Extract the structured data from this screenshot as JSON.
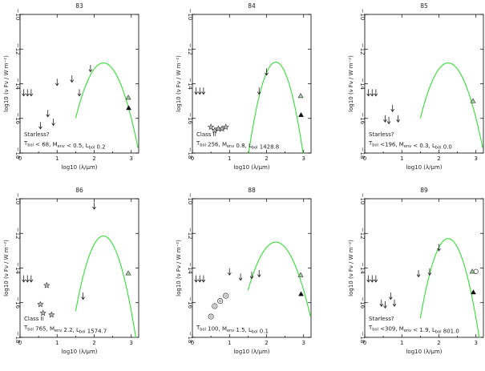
{
  "chart_data": [
    {
      "type": "scatter",
      "title": "83",
      "xlabel": "log10 (λ/μm)",
      "ylabel": "log10 (ν Fν / W m⁻²)",
      "xlim": [
        0,
        3.2
      ],
      "ylim": [
        -18,
        -10
      ],
      "xticks": [
        0,
        1,
        2,
        3
      ],
      "yticks": [
        -10,
        -12,
        -14,
        -16,
        -18
      ],
      "upper_limits": [
        [
          0.1,
          -14.5
        ],
        [
          0.2,
          -14.5
        ],
        [
          0.3,
          -14.5
        ],
        [
          0.55,
          -16.4
        ],
        [
          0.75,
          -15.7
        ],
        [
          0.9,
          -16.2
        ],
        [
          1.0,
          -13.9
        ],
        [
          1.4,
          -13.7
        ],
        [
          1.6,
          -14.5
        ],
        [
          1.9,
          -13.1
        ]
      ],
      "detections": [],
      "submm": [
        {
          "x": 2.92,
          "y": -14.8,
          "marker": "open-triangle"
        },
        {
          "x": 2.93,
          "y": -15.4,
          "marker": "filled-triangle"
        }
      ],
      "sed_model": {
        "peak_x": 2.25,
        "peak_y": -12.8,
        "width": 0.42
      },
      "annotation": {
        "class": "Starless?",
        "params": "T_bol < 68, M_env < 0.5, L_bol 0.2"
      }
    },
    {
      "type": "scatter",
      "title": "84",
      "xlabel": "log10 (λ/μm)",
      "ylabel": "log10 (ν Fν / W m⁻²)",
      "xlim": [
        0,
        3.2
      ],
      "ylim": [
        -18,
        -10
      ],
      "xticks": [
        0,
        1,
        2,
        3
      ],
      "yticks": [
        -10,
        -12,
        -14,
        -16,
        -18
      ],
      "upper_limits": [
        [
          0.1,
          -14.4
        ],
        [
          0.2,
          -14.4
        ],
        [
          0.3,
          -14.4
        ],
        [
          1.8,
          -14.4
        ],
        [
          2.0,
          -13.3
        ]
      ],
      "detections": [
        {
          "x": 0.5,
          "y": -16.5,
          "marker": "star"
        },
        {
          "x": 0.6,
          "y": -16.7,
          "marker": "star"
        },
        {
          "x": 0.7,
          "y": -16.6,
          "marker": "star"
        },
        {
          "x": 0.8,
          "y": -16.6,
          "marker": "star"
        },
        {
          "x": 0.9,
          "y": -16.5,
          "marker": "star"
        }
      ],
      "submm": [
        {
          "x": 2.92,
          "y": -14.7,
          "marker": "open-triangle"
        },
        {
          "x": 2.93,
          "y": -15.8,
          "marker": "filled-triangle"
        }
      ],
      "sed_model": {
        "peak_x": 2.25,
        "peak_y": -12.75,
        "width": 0.32
      },
      "annotation": {
        "class": "Class II",
        "params": "T_bol 256, M_env 0.8, L_bol 1428.8"
      }
    },
    {
      "type": "scatter",
      "title": "85",
      "xlabel": "log10 (λ/μm)",
      "ylabel": "log10 (ν Fν / W m⁻²)",
      "xlim": [
        0,
        3.2
      ],
      "ylim": [
        -18,
        -10
      ],
      "xticks": [
        0,
        1,
        2,
        3
      ],
      "yticks": [
        -10,
        -12,
        -14,
        -16,
        -18
      ],
      "upper_limits": [
        [
          0.1,
          -14.5
        ],
        [
          0.2,
          -14.5
        ],
        [
          0.3,
          -14.5
        ],
        [
          0.55,
          -16.0
        ],
        [
          0.65,
          -16.1
        ],
        [
          0.75,
          -15.4
        ],
        [
          0.9,
          -16.0
        ]
      ],
      "detections": [],
      "submm": [
        {
          "x": 2.92,
          "y": -15.0,
          "marker": "open-triangle"
        }
      ],
      "sed_model": {
        "peak_x": 2.25,
        "peak_y": -12.8,
        "width": 0.42
      },
      "annotation": {
        "class": "Starless?",
        "params": "T_bol <196, M_env < 0.3, L_bol 0.0"
      }
    },
    {
      "type": "scatter",
      "title": "86",
      "xlabel": "log10 (λ/μm)",
      "ylabel": "log10 (ν Fν / W m⁻²)",
      "xlim": [
        0,
        3.2
      ],
      "ylim": [
        -18,
        -10
      ],
      "xticks": [
        0,
        1,
        2,
        3
      ],
      "yticks": [
        -10,
        -12,
        -14,
        -16,
        -18
      ],
      "upper_limits": [
        [
          0.1,
          -14.6
        ],
        [
          0.2,
          -14.6
        ],
        [
          0.3,
          -14.6
        ],
        [
          1.7,
          -15.6
        ],
        [
          2.0,
          -10.4
        ]
      ],
      "detections": [
        {
          "x": 0.55,
          "y": -16.1,
          "marker": "star"
        },
        {
          "x": 0.62,
          "y": -16.6,
          "marker": "star"
        },
        {
          "x": 0.72,
          "y": -15.0,
          "marker": "star"
        },
        {
          "x": 0.85,
          "y": -16.7,
          "marker": "star"
        }
      ],
      "submm": [
        {
          "x": 2.92,
          "y": -14.3,
          "marker": "open-triangle"
        }
      ],
      "sed_model": {
        "peak_x": 2.25,
        "peak_y": -12.15,
        "width": 0.36
      },
      "annotation": {
        "class": "Class II",
        "params": "T_bol 765, M_env 2.2, L_bol 1574.7"
      }
    },
    {
      "type": "scatter",
      "title": "88",
      "xlabel": "log10 (λ/μm)",
      "ylabel": "log10 (ν Fν / W m⁻²)",
      "xlim": [
        0,
        3.2
      ],
      "ylim": [
        -18,
        -10
      ],
      "xticks": [
        0,
        1,
        2,
        3
      ],
      "yticks": [
        -10,
        -12,
        -14,
        -16,
        -18
      ],
      "upper_limits": [
        [
          0.1,
          -14.6
        ],
        [
          0.2,
          -14.6
        ],
        [
          0.3,
          -14.6
        ],
        [
          1.0,
          -14.2
        ],
        [
          1.3,
          -14.5
        ],
        [
          1.6,
          -14.4
        ],
        [
          1.8,
          -14.3
        ]
      ],
      "detections": [
        {
          "x": 0.5,
          "y": -16.8,
          "marker": "circle"
        },
        {
          "x": 0.6,
          "y": -16.2,
          "marker": "circle"
        },
        {
          "x": 0.75,
          "y": -15.9,
          "marker": "circle"
        },
        {
          "x": 0.9,
          "y": -15.6,
          "marker": "circle"
        }
      ],
      "submm": [
        {
          "x": 2.92,
          "y": -14.4,
          "marker": "open-triangle"
        },
        {
          "x": 2.93,
          "y": -15.5,
          "marker": "filled-triangle"
        }
      ],
      "sed_model": {
        "peak_x": 2.25,
        "peak_y": -12.5,
        "width": 0.45
      },
      "annotation": {
        "class": "",
        "params": "T_bol 100, M_env 1.5, L_bol 0.1"
      }
    },
    {
      "type": "scatter",
      "title": "89",
      "xlabel": "log10 (λ/μm)",
      "ylabel": "log10 (ν Fν / W m⁻²)",
      "xlim": [
        0,
        3.2
      ],
      "ylim": [
        -18,
        -10
      ],
      "xticks": [
        0,
        1,
        2,
        3
      ],
      "yticks": [
        -10,
        -12,
        -14,
        -16,
        -18
      ],
      "upper_limits": [
        [
          0.1,
          -14.6
        ],
        [
          0.2,
          -14.6
        ],
        [
          0.3,
          -14.6
        ],
        [
          0.45,
          -16.0
        ],
        [
          0.55,
          -16.1
        ],
        [
          0.7,
          -15.6
        ],
        [
          0.8,
          -16.0
        ],
        [
          1.45,
          -14.3
        ],
        [
          1.75,
          -14.2
        ],
        [
          2.0,
          -12.8
        ]
      ],
      "detections": [],
      "submm": [
        {
          "x": 2.9,
          "y": -14.2,
          "marker": "open-triangle"
        },
        {
          "x": 3.0,
          "y": -14.2,
          "marker": "circle"
        },
        {
          "x": 2.93,
          "y": -15.4,
          "marker": "filled-triangle"
        }
      ],
      "sed_model": {
        "peak_x": 2.25,
        "peak_y": -12.3,
        "width": 0.35
      },
      "annotation": {
        "class": "Starless?",
        "params": "T_bol <309, M_env < 1.9, L_bol 801.0"
      }
    }
  ]
}
